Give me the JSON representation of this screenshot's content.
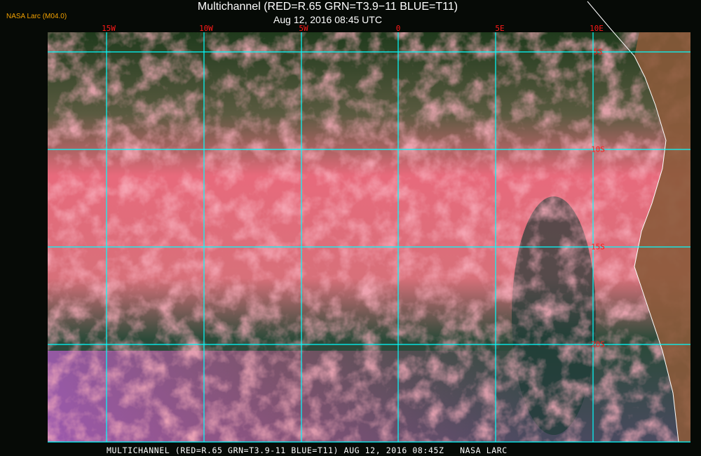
{
  "header": {
    "credit": "NASA Larc (M04.0)",
    "title": "Multichannel (RED=R.65 GRN=T3.9−11 BLUE=T11)",
    "subtitle": "Aug 12, 2016 08:45 UTC"
  },
  "map": {
    "longitude_labels": [
      "15W",
      "10W",
      "5W",
      "0",
      "5E",
      "10E"
    ],
    "latitude_labels": [
      "5S",
      "10S",
      "15S",
      "20S"
    ],
    "grid_color": "#00ffff",
    "label_color": "#ff1a1a",
    "coastline_color": "#ffffff",
    "cloud_color": "#f06a80",
    "ocean_color": "#1f3b2a",
    "land_color": "#8a5a3a"
  },
  "footer": {
    "caption": "MULTICHANNEL (RED=R.65 GRN=T3.9-11 BLUE=T11) AUG 12, 2016 08:45Z   NASA LARC"
  }
}
